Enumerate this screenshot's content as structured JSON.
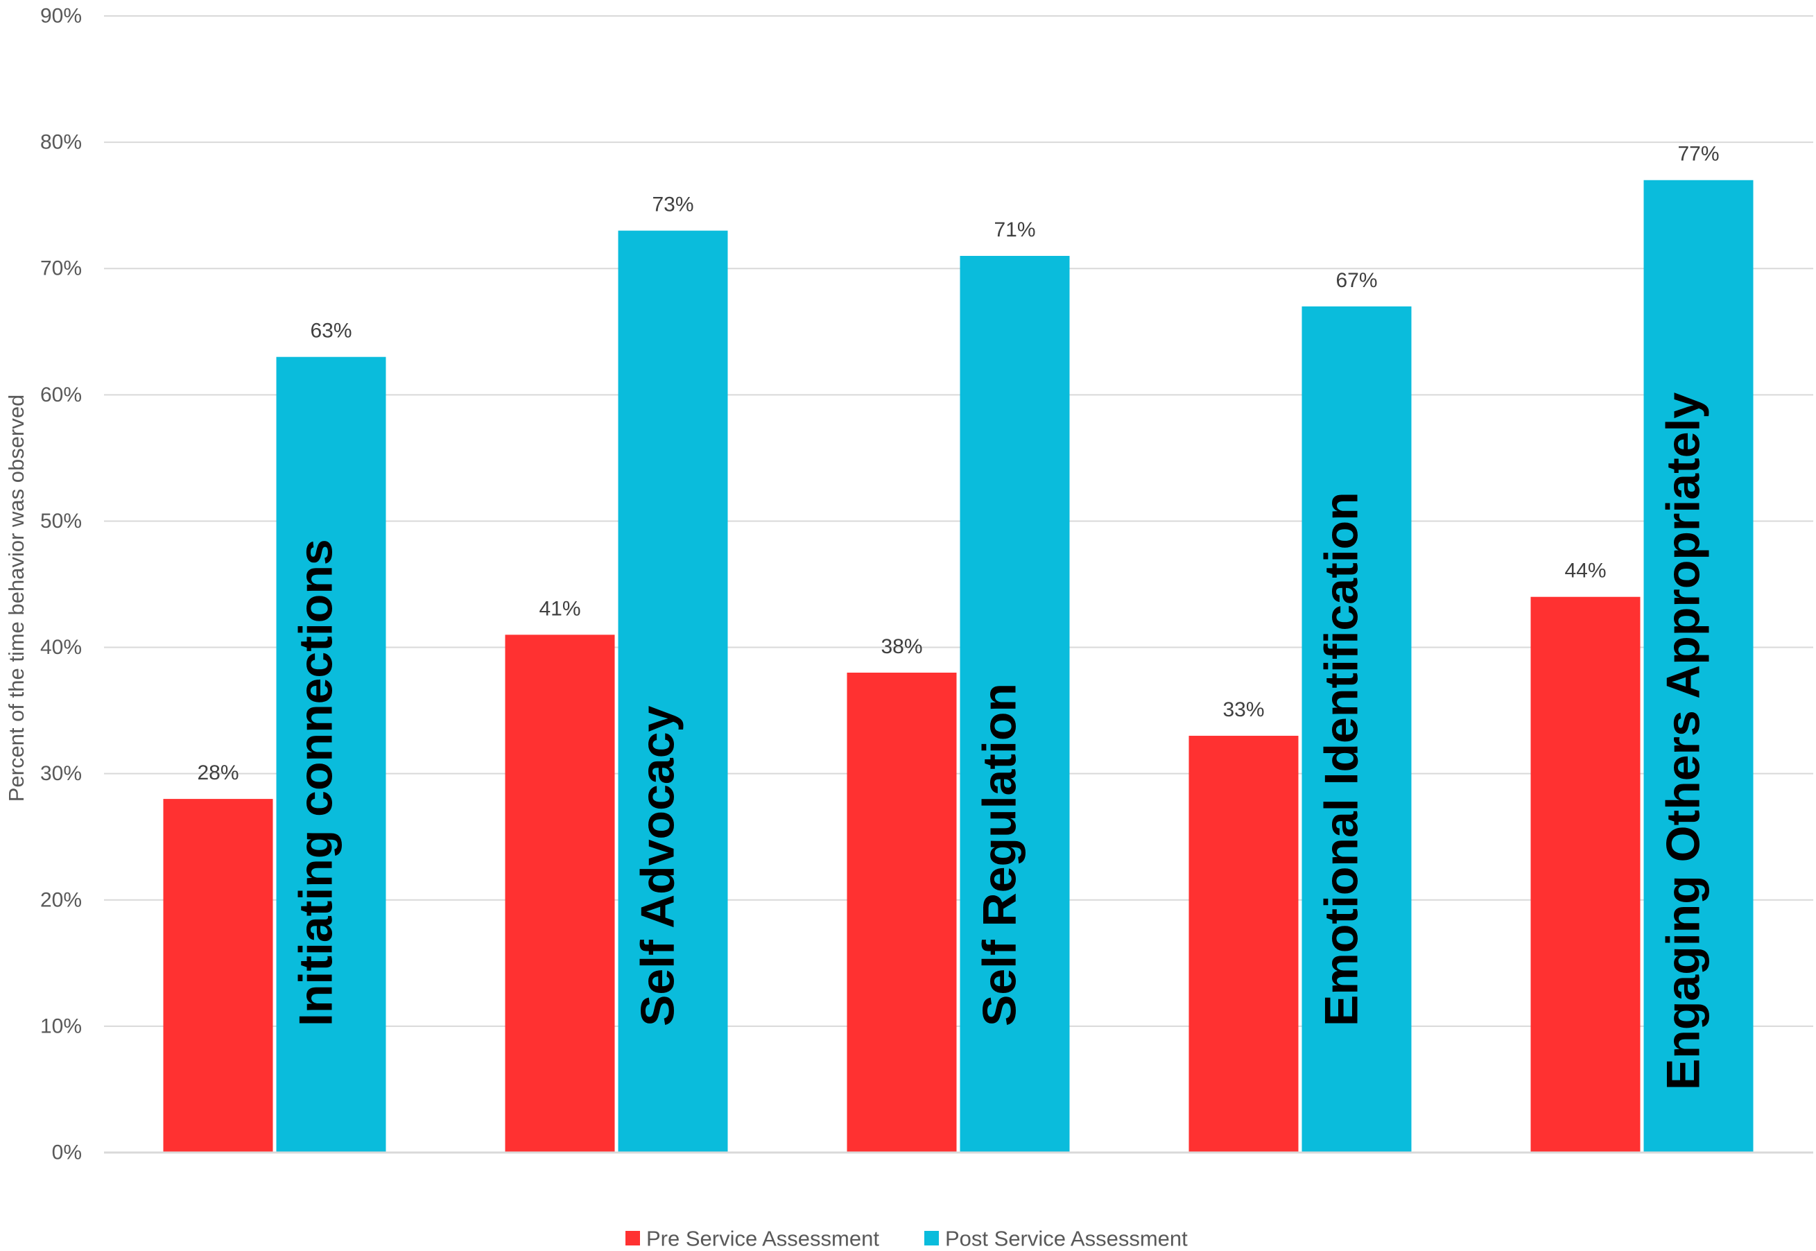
{
  "chart_data": {
    "type": "bar",
    "title": "",
    "xlabel": "",
    "ylabel": "Percent of the time behavior was observed",
    "ylim": [
      0,
      90
    ],
    "y_ticks": [
      "0%",
      "10%",
      "20%",
      "30%",
      "40%",
      "50%",
      "60%",
      "70%",
      "80%",
      "90%"
    ],
    "y_tick_values": [
      0,
      10,
      20,
      30,
      40,
      50,
      60,
      70,
      80,
      90
    ],
    "grid": true,
    "legend_position": "bottom",
    "categories": [
      "Initiating connections",
      "Self Advocacy",
      "Self Regulation",
      "Emotional Identification",
      "Engaging Others Appropriately"
    ],
    "series": [
      {
        "name": "Pre Service Assessment",
        "color": "#ff3131",
        "values": [
          28,
          41,
          38,
          33,
          44
        ],
        "labels": [
          "28%",
          "41%",
          "38%",
          "33%",
          "44%"
        ]
      },
      {
        "name": "Post Service Assessment",
        "color": "#0abcdc",
        "values": [
          63,
          73,
          71,
          67,
          77
        ],
        "labels": [
          "63%",
          "73%",
          "71%",
          "67%",
          "77%"
        ]
      }
    ]
  }
}
